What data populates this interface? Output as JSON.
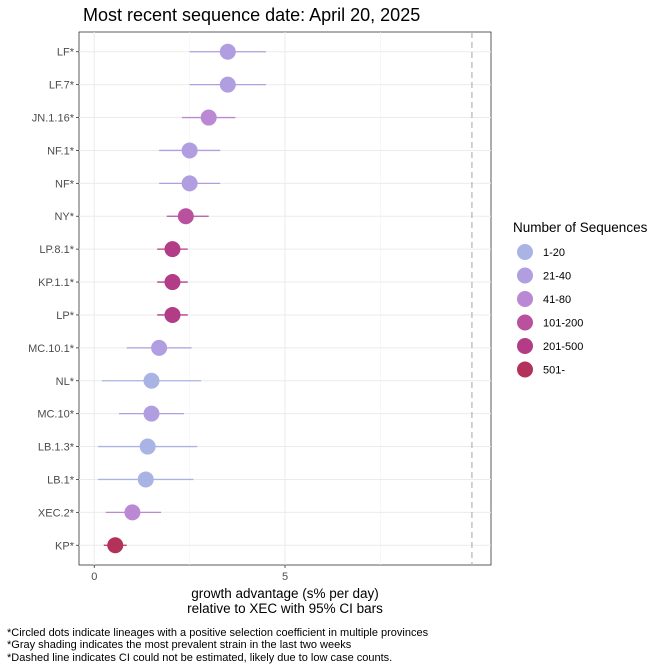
{
  "chart_data": {
    "type": "scatter",
    "title": "Most recent sequence date: April 20, 2025",
    "xlabel_line1": "growth advantage (s% per day)",
    "xlabel_line2": "relative to  XEC  with 95% CI bars",
    "x_ticks": [
      0,
      5
    ],
    "xlim": [
      -0.4,
      10.4
    ],
    "dashed_line_x": 9.9,
    "legend": {
      "title": "Number of Sequences",
      "items": [
        {
          "label": "1-20",
          "color": "#aab4e4"
        },
        {
          "label": "21-40",
          "color": "#b09ee0"
        },
        {
          "label": "41-80",
          "color": "#bb88d4"
        },
        {
          "label": "101-200",
          "color": "#b9519f"
        },
        {
          "label": "201-500",
          "color": "#b23d86"
        },
        {
          "label": "501-",
          "color": "#b2325a"
        }
      ]
    },
    "points": [
      {
        "label": "LF*",
        "x": 3.5,
        "lo": 2.5,
        "hi": 4.5,
        "color": "#b09ee0"
      },
      {
        "label": "LF.7*",
        "x": 3.5,
        "lo": 2.5,
        "hi": 4.5,
        "color": "#b09ee0"
      },
      {
        "label": "JN.1.16*",
        "x": 3.0,
        "lo": 2.3,
        "hi": 3.7,
        "color": "#bb88d4"
      },
      {
        "label": "NF.1*",
        "x": 2.5,
        "lo": 1.7,
        "hi": 3.3,
        "color": "#b09ee0"
      },
      {
        "label": "NF*",
        "x": 2.5,
        "lo": 1.7,
        "hi": 3.3,
        "color": "#b09ee0"
      },
      {
        "label": "NY*",
        "x": 2.4,
        "lo": 1.9,
        "hi": 3.0,
        "color": "#b9519f"
      },
      {
        "label": "LP.8.1*",
        "x": 2.05,
        "lo": 1.65,
        "hi": 2.45,
        "color": "#b23d86"
      },
      {
        "label": "KP.1.1*",
        "x": 2.05,
        "lo": 1.65,
        "hi": 2.45,
        "color": "#b23d86"
      },
      {
        "label": "LP*",
        "x": 2.05,
        "lo": 1.65,
        "hi": 2.45,
        "color": "#b23d86"
      },
      {
        "label": "MC.10.1*",
        "x": 1.7,
        "lo": 0.85,
        "hi": 2.55,
        "color": "#b09ee0"
      },
      {
        "label": "NL*",
        "x": 1.5,
        "lo": 0.2,
        "hi": 2.8,
        "color": "#aab4e4"
      },
      {
        "label": "MC.10*",
        "x": 1.5,
        "lo": 0.65,
        "hi": 2.35,
        "color": "#b09ee0"
      },
      {
        "label": "LB.1.3*",
        "x": 1.4,
        "lo": 0.1,
        "hi": 2.7,
        "color": "#aab4e4"
      },
      {
        "label": "LB.1*",
        "x": 1.35,
        "lo": 0.1,
        "hi": 2.6,
        "color": "#aab4e4"
      },
      {
        "label": "XEC.2*",
        "x": 1.0,
        "lo": 0.3,
        "hi": 1.75,
        "color": "#bb88d4"
      },
      {
        "label": "KP*",
        "x": 0.55,
        "lo": 0.25,
        "hi": 0.85,
        "color": "#b2325a"
      }
    ]
  },
  "footnotes": [
    "*Circled dots indicate lineages with a positive selection coefficient in multiple provinces",
    "*Gray shading indicates the most prevalent strain in the last two weeks",
    "*Dashed line indicates CI could not be estimated, likely due to low case counts."
  ]
}
